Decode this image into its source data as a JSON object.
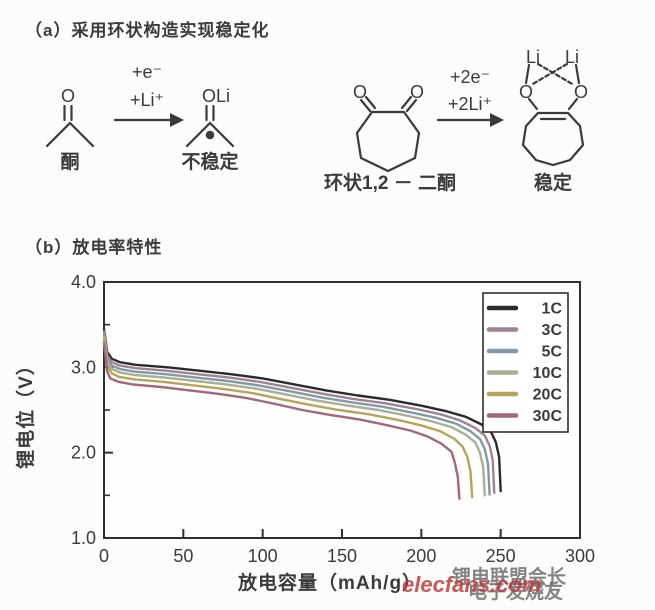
{
  "titles": {
    "a": "（a）采用环状构造实现稳定化",
    "b": "（b）放电率特性"
  },
  "reaction1": {
    "oxygen": "O",
    "reactant_label": "酮",
    "cond1": "+e⁻",
    "cond2": "+Li⁺",
    "product_top": "OLi",
    "product_label": "不稳定"
  },
  "reaction2": {
    "oxygen_left": "O",
    "oxygen_right": "O",
    "cond1": "+2e⁻",
    "cond2": "+2Li⁺",
    "reactant_label": "环状1,2 － 二酮",
    "li_left": "Li",
    "li_right": "Li",
    "o_prod_left": "O",
    "o_prod_right": "O",
    "product_label": "稳定"
  },
  "watermarks": {
    "red": "elecfans.com",
    "gray1": "锂电联盟会长",
    "gray2": "电子发烧友"
  },
  "chart_data": {
    "type": "line",
    "title": "放电率特性",
    "xlabel": "放电容量（mAh/g）",
    "ylabel": "锂电位（V）",
    "xlim": [
      0,
      300
    ],
    "ylim": [
      1.0,
      4.0
    ],
    "x_ticks": [
      0,
      50,
      100,
      150,
      200,
      250,
      300
    ],
    "y_ticks": [
      1.0,
      2.0,
      3.0,
      4.0
    ],
    "y_minor_ticks": [
      1.5,
      2.5,
      3.5
    ],
    "grid": false,
    "legend_position": "top-right",
    "axis_color": "#2f2f2f",
    "series": [
      {
        "name": "1C",
        "color": "#2b2b2b",
        "points": [
          [
            0,
            3.45
          ],
          [
            2,
            3.18
          ],
          [
            5,
            3.1
          ],
          [
            10,
            3.06
          ],
          [
            20,
            3.03
          ],
          [
            40,
            3.0
          ],
          [
            60,
            2.96
          ],
          [
            80,
            2.92
          ],
          [
            100,
            2.87
          ],
          [
            120,
            2.8
          ],
          [
            140,
            2.73
          ],
          [
            160,
            2.67
          ],
          [
            180,
            2.62
          ],
          [
            200,
            2.55
          ],
          [
            215,
            2.49
          ],
          [
            228,
            2.42
          ],
          [
            238,
            2.33
          ],
          [
            244,
            2.24
          ],
          [
            247,
            2.12
          ],
          [
            249,
            1.95
          ],
          [
            250,
            1.55
          ]
        ]
      },
      {
        "name": "3C",
        "color": "#9d8494",
        "points": [
          [
            0,
            3.42
          ],
          [
            2,
            3.14
          ],
          [
            5,
            3.06
          ],
          [
            10,
            3.02
          ],
          [
            20,
            2.99
          ],
          [
            39,
            2.96
          ],
          [
            59,
            2.92
          ],
          [
            79,
            2.88
          ],
          [
            98,
            2.83
          ],
          [
            118,
            2.76
          ],
          [
            138,
            2.69
          ],
          [
            157,
            2.63
          ],
          [
            177,
            2.58
          ],
          [
            197,
            2.51
          ],
          [
            212,
            2.45
          ],
          [
            224,
            2.38
          ],
          [
            234,
            2.29
          ],
          [
            240,
            2.2
          ],
          [
            243,
            2.08
          ],
          [
            245,
            1.91
          ],
          [
            246,
            1.53
          ]
        ]
      },
      {
        "name": "5C",
        "color": "#7f9aa6",
        "points": [
          [
            0,
            3.39
          ],
          [
            2,
            3.1
          ],
          [
            5,
            3.02
          ],
          [
            10,
            2.98
          ],
          [
            19,
            2.95
          ],
          [
            39,
            2.92
          ],
          [
            58,
            2.88
          ],
          [
            78,
            2.84
          ],
          [
            97,
            2.79
          ],
          [
            117,
            2.72
          ],
          [
            136,
            2.65
          ],
          [
            156,
            2.59
          ],
          [
            175,
            2.54
          ],
          [
            194,
            2.47
          ],
          [
            209,
            2.41
          ],
          [
            222,
            2.34
          ],
          [
            231,
            2.25
          ],
          [
            237,
            2.16
          ],
          [
            240,
            2.04
          ],
          [
            242,
            1.87
          ],
          [
            243,
            1.51
          ]
        ]
      },
      {
        "name": "10C",
        "color": "#a9ae95",
        "points": [
          [
            0,
            3.36
          ],
          [
            2,
            3.06
          ],
          [
            5,
            2.98
          ],
          [
            10,
            2.94
          ],
          [
            19,
            2.91
          ],
          [
            38,
            2.88
          ],
          [
            58,
            2.84
          ],
          [
            77,
            2.8
          ],
          [
            96,
            2.75
          ],
          [
            115,
            2.68
          ],
          [
            134,
            2.61
          ],
          [
            154,
            2.55
          ],
          [
            173,
            2.5
          ],
          [
            192,
            2.43
          ],
          [
            206,
            2.37
          ],
          [
            219,
            2.3
          ],
          [
            228,
            2.21
          ],
          [
            234,
            2.12
          ],
          [
            237,
            2.0
          ],
          [
            239,
            1.83
          ],
          [
            240,
            1.5
          ]
        ]
      },
      {
        "name": "20C",
        "color": "#b5a45a",
        "points": [
          [
            0,
            3.32
          ],
          [
            2,
            3.01
          ],
          [
            5,
            2.93
          ],
          [
            9,
            2.89
          ],
          [
            19,
            2.86
          ],
          [
            37,
            2.83
          ],
          [
            56,
            2.79
          ],
          [
            74,
            2.75
          ],
          [
            93,
            2.7
          ],
          [
            111,
            2.63
          ],
          [
            130,
            2.56
          ],
          [
            148,
            2.5
          ],
          [
            167,
            2.45
          ],
          [
            186,
            2.38
          ],
          [
            200,
            2.32
          ],
          [
            212,
            2.25
          ],
          [
            221,
            2.16
          ],
          [
            226,
            2.07
          ],
          [
            229,
            1.95
          ],
          [
            231,
            1.78
          ],
          [
            232,
            1.48
          ]
        ]
      },
      {
        "name": "30C",
        "color": "#a2677a",
        "points": [
          [
            0,
            3.28
          ],
          [
            2,
            2.95
          ],
          [
            4,
            2.87
          ],
          [
            9,
            2.83
          ],
          [
            18,
            2.8
          ],
          [
            36,
            2.77
          ],
          [
            54,
            2.73
          ],
          [
            72,
            2.69
          ],
          [
            90,
            2.64
          ],
          [
            108,
            2.57
          ],
          [
            125,
            2.5
          ],
          [
            143,
            2.44
          ],
          [
            161,
            2.39
          ],
          [
            179,
            2.32
          ],
          [
            193,
            2.26
          ],
          [
            204,
            2.19
          ],
          [
            213,
            2.1
          ],
          [
            219,
            2.01
          ],
          [
            221,
            1.89
          ],
          [
            223,
            1.72
          ],
          [
            224,
            1.46
          ]
        ]
      }
    ]
  }
}
